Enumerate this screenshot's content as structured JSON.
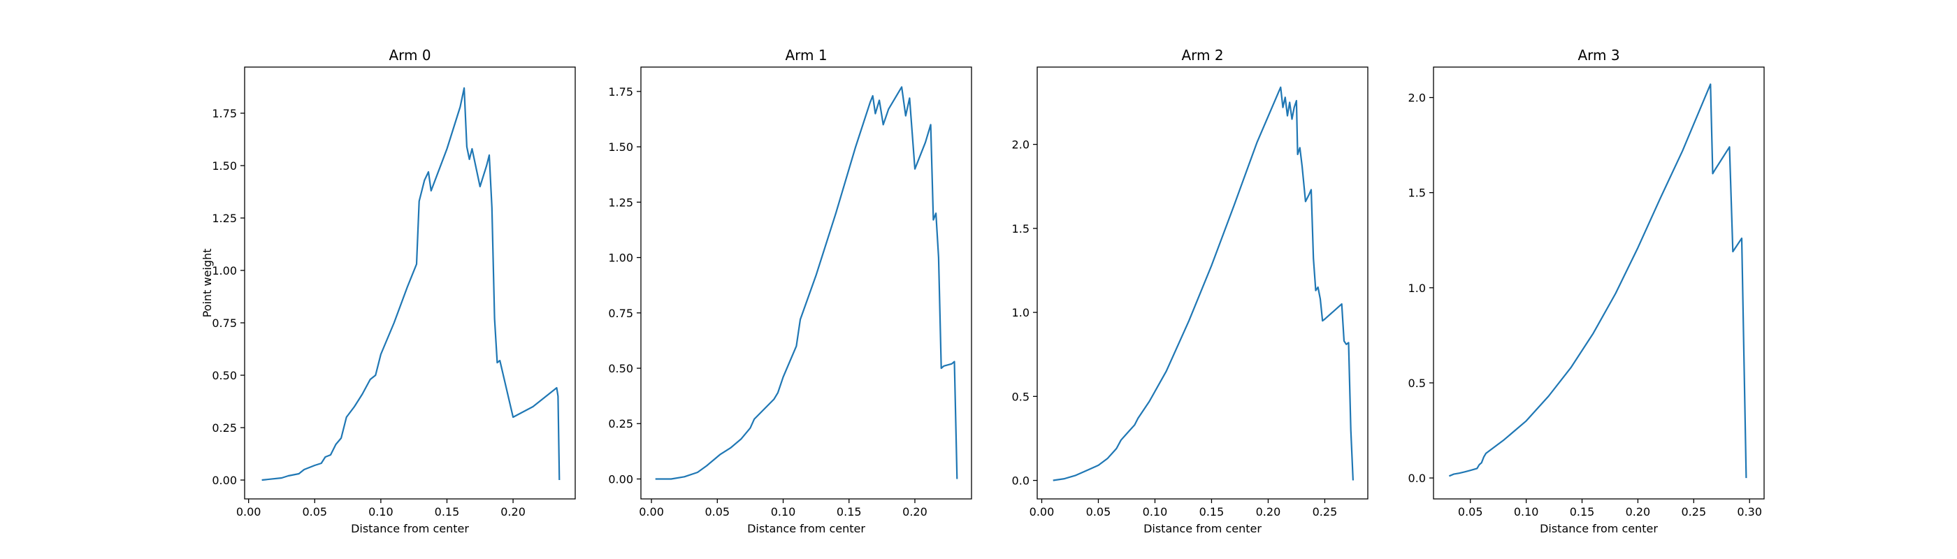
{
  "chart_data": [
    {
      "type": "line",
      "title": "Arm 0",
      "xlabel": "Distance from center",
      "ylabel": "Point weight",
      "xlim": [
        -0.003,
        0.247
      ],
      "ylim": [
        -0.09,
        1.97
      ],
      "xticks": [
        0.0,
        0.05,
        0.1,
        0.15,
        0.2
      ],
      "xtick_labels": [
        "0.00",
        "0.05",
        "0.10",
        "0.15",
        "0.20"
      ],
      "yticks": [
        0.0,
        0.25,
        0.5,
        0.75,
        1.0,
        1.25,
        1.5,
        1.75
      ],
      "ytick_labels": [
        "0.00",
        "0.25",
        "0.50",
        "0.75",
        "1.00",
        "1.25",
        "1.50",
        "1.75"
      ],
      "color": "#1f77b4",
      "series": [
        {
          "x": [
            0.01,
            0.025,
            0.03,
            0.038,
            0.042,
            0.05,
            0.055,
            0.058,
            0.062,
            0.066,
            0.07,
            0.074,
            0.08,
            0.086,
            0.092,
            0.096,
            0.1,
            0.11,
            0.12,
            0.127,
            0.129,
            0.131,
            0.133,
            0.136,
            0.138,
            0.15,
            0.16,
            0.163,
            0.165,
            0.167,
            0.169,
            0.175,
            0.18,
            0.182,
            0.184,
            0.186,
            0.188,
            0.19,
            0.2,
            0.215,
            0.233,
            0.234,
            0.235
          ],
          "y": [
            0.0,
            0.01,
            0.02,
            0.03,
            0.05,
            0.07,
            0.08,
            0.11,
            0.12,
            0.17,
            0.2,
            0.3,
            0.35,
            0.41,
            0.48,
            0.5,
            0.6,
            0.75,
            0.92,
            1.03,
            1.33,
            1.38,
            1.43,
            1.47,
            1.38,
            1.58,
            1.78,
            1.87,
            1.59,
            1.53,
            1.58,
            1.4,
            1.5,
            1.55,
            1.3,
            0.77,
            0.56,
            0.57,
            0.3,
            0.35,
            0.44,
            0.4,
            0.0
          ]
        }
      ]
    },
    {
      "type": "line",
      "title": "Arm 1",
      "xlabel": "Distance from center",
      "ylabel": "",
      "xlim": [
        -0.008,
        0.243
      ],
      "ylim": [
        -0.09,
        1.86
      ],
      "xticks": [
        0.0,
        0.05,
        0.1,
        0.15,
        0.2
      ],
      "xtick_labels": [
        "0.00",
        "0.05",
        "0.10",
        "0.15",
        "0.20"
      ],
      "yticks": [
        0.0,
        0.25,
        0.5,
        0.75,
        1.0,
        1.25,
        1.5,
        1.75
      ],
      "ytick_labels": [
        "0.00",
        "0.25",
        "0.50",
        "0.75",
        "1.00",
        "1.25",
        "1.50",
        "1.75"
      ],
      "color": "#1f77b4",
      "series": [
        {
          "x": [
            0.003,
            0.015,
            0.025,
            0.035,
            0.042,
            0.048,
            0.052,
            0.06,
            0.068,
            0.075,
            0.078,
            0.083,
            0.088,
            0.093,
            0.096,
            0.1,
            0.11,
            0.113,
            0.125,
            0.14,
            0.155,
            0.166,
            0.168,
            0.17,
            0.173,
            0.176,
            0.18,
            0.19,
            0.193,
            0.196,
            0.2,
            0.208,
            0.212,
            0.214,
            0.216,
            0.218,
            0.22,
            0.222,
            0.228,
            0.23,
            0.232
          ],
          "y": [
            0.0,
            0.0,
            0.01,
            0.03,
            0.06,
            0.09,
            0.11,
            0.14,
            0.18,
            0.23,
            0.27,
            0.3,
            0.33,
            0.36,
            0.39,
            0.46,
            0.6,
            0.72,
            0.92,
            1.2,
            1.5,
            1.7,
            1.73,
            1.65,
            1.71,
            1.6,
            1.67,
            1.77,
            1.64,
            1.72,
            1.4,
            1.52,
            1.6,
            1.17,
            1.2,
            1.0,
            0.5,
            0.51,
            0.52,
            0.53,
            0.0
          ]
        }
      ]
    },
    {
      "type": "line",
      "title": "Arm 2",
      "xlabel": "Distance from center",
      "ylabel": "",
      "xlim": [
        -0.004,
        0.288
      ],
      "ylim": [
        -0.11,
        2.46
      ],
      "xticks": [
        0.0,
        0.05,
        0.1,
        0.15,
        0.2,
        0.25
      ],
      "xtick_labels": [
        "0.00",
        "0.05",
        "0.10",
        "0.15",
        "0.20",
        "0.25"
      ],
      "yticks": [
        0.0,
        0.5,
        1.0,
        1.5,
        2.0
      ],
      "ytick_labels": [
        "0.0",
        "0.5",
        "1.0",
        "1.5",
        "2.0"
      ],
      "color": "#1f77b4",
      "series": [
        {
          "x": [
            0.01,
            0.02,
            0.03,
            0.04,
            0.05,
            0.058,
            0.062,
            0.066,
            0.07,
            0.074,
            0.078,
            0.082,
            0.085,
            0.095,
            0.11,
            0.13,
            0.15,
            0.17,
            0.19,
            0.211,
            0.213,
            0.215,
            0.217,
            0.219,
            0.221,
            0.223,
            0.225,
            0.226,
            0.228,
            0.23,
            0.233,
            0.236,
            0.238,
            0.24,
            0.242,
            0.244,
            0.246,
            0.248,
            0.25,
            0.265,
            0.267,
            0.269,
            0.271,
            0.273,
            0.275
          ],
          "y": [
            0.0,
            0.01,
            0.03,
            0.06,
            0.09,
            0.13,
            0.16,
            0.19,
            0.24,
            0.27,
            0.3,
            0.33,
            0.37,
            0.47,
            0.65,
            0.95,
            1.28,
            1.64,
            2.01,
            2.34,
            2.22,
            2.28,
            2.17,
            2.25,
            2.15,
            2.22,
            2.26,
            1.94,
            1.98,
            1.87,
            1.66,
            1.7,
            1.73,
            1.32,
            1.13,
            1.15,
            1.08,
            0.95,
            0.96,
            1.05,
            0.83,
            0.81,
            0.82,
            0.3,
            0.0
          ]
        }
      ]
    },
    {
      "type": "line",
      "title": "Arm 3",
      "xlabel": "Distance from center",
      "ylabel": "",
      "xlim": [
        0.017,
        0.313
      ],
      "ylim": [
        -0.11,
        2.16
      ],
      "xticks": [
        0.05,
        0.1,
        0.15,
        0.2,
        0.25,
        0.3
      ],
      "xtick_labels": [
        "0.05",
        "0.10",
        "0.15",
        "0.20",
        "0.25",
        "0.30"
      ],
      "yticks": [
        0.0,
        0.5,
        1.0,
        1.5,
        2.0
      ],
      "ytick_labels": [
        "0.0",
        "0.5",
        "1.0",
        "1.5",
        "2.0"
      ],
      "color": "#1f77b4",
      "series": [
        {
          "x": [
            0.031,
            0.035,
            0.04,
            0.045,
            0.05,
            0.056,
            0.058,
            0.06,
            0.062,
            0.064,
            0.08,
            0.1,
            0.12,
            0.14,
            0.16,
            0.18,
            0.2,
            0.22,
            0.24,
            0.265,
            0.267,
            0.269,
            0.282,
            0.285,
            0.293,
            0.297
          ],
          "y": [
            0.01,
            0.02,
            0.025,
            0.032,
            0.04,
            0.05,
            0.07,
            0.08,
            0.11,
            0.13,
            0.2,
            0.3,
            0.43,
            0.58,
            0.76,
            0.97,
            1.21,
            1.47,
            1.72,
            2.07,
            1.6,
            1.62,
            1.74,
            1.19,
            1.26,
            0.0
          ]
        }
      ]
    }
  ]
}
